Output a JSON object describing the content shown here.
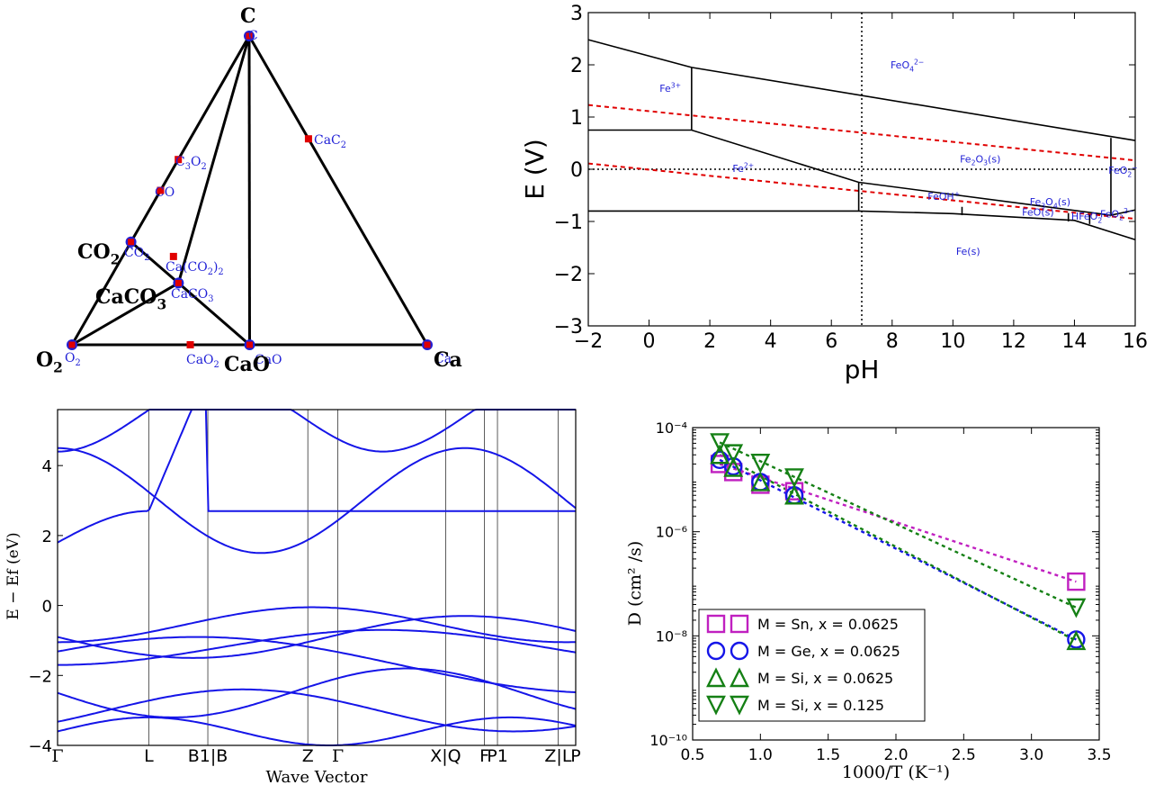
{
  "colors": {
    "stable": "#1f1fd6",
    "unstable": "#e00000",
    "line": "#000000",
    "band": "#1515e8",
    "sn": "#c020c0",
    "ge": "#1515e8",
    "si": "#158015",
    "water": "#e00000"
  },
  "chart_data": [
    {
      "type": "ternary_phase_diagram",
      "vertices": {
        "top": "C",
        "left": "O2",
        "right": "Ca"
      },
      "stable_phases": [
        {
          "name": "C",
          "label": "C",
          "bold_label": "C",
          "t": [
            0,
            0,
            1
          ]
        },
        {
          "name": "O2",
          "label": "O2",
          "bold_label": "O2",
          "t": [
            1,
            0,
            0
          ]
        },
        {
          "name": "Ca",
          "label": "Ca",
          "bold_label": "Ca",
          "t": [
            0,
            1,
            0
          ]
        },
        {
          "name": "CaO",
          "label": "CaO",
          "bold_label": "CaO",
          "t": [
            0.5,
            0.5,
            0
          ]
        },
        {
          "name": "CO2",
          "label": "CO2",
          "bold_label": "CO2",
          "t": [
            0.667,
            0,
            0.333
          ]
        },
        {
          "name": "CaCO3",
          "label": "CaCO3",
          "bold_label": "CaCO3",
          "t": [
            0.6,
            0.2,
            0.2
          ]
        }
      ],
      "unstable_phases": [
        {
          "name": "C3O2",
          "label": "C3O2",
          "t": [
            0.4,
            0,
            0.6
          ]
        },
        {
          "name": "CO",
          "label": "CO",
          "t": [
            0.5,
            0,
            0.5
          ]
        },
        {
          "name": "CaC2",
          "label": "CaC2",
          "t": [
            0,
            0.333,
            0.667
          ]
        },
        {
          "name": "Ca(CO2)2",
          "label": "Ca(CO2)2",
          "t": [
            0.571,
            0.143,
            0.286
          ]
        },
        {
          "name": "CaO2",
          "label": "CaO2",
          "t": [
            0.667,
            0.333,
            0
          ]
        }
      ],
      "tie_lines": [
        [
          "C",
          "O2"
        ],
        [
          "C",
          "Ca"
        ],
        [
          "O2",
          "Ca"
        ],
        [
          "C",
          "CaO"
        ],
        [
          "CO2",
          "CaCO3"
        ],
        [
          "CaCO3",
          "CaO"
        ],
        [
          "CaCO3",
          "O2"
        ],
        [
          "CaCO3",
          "C"
        ]
      ]
    },
    {
      "type": "pourbaix",
      "xlabel": "pH",
      "ylabel": "E (V)",
      "xlim": [
        -2,
        16
      ],
      "ylim": [
        -3,
        3
      ],
      "xticks": [
        -2,
        0,
        2,
        4,
        6,
        8,
        10,
        12,
        14,
        16
      ],
      "yticks": [
        -3,
        -2,
        -1,
        0,
        1,
        2,
        3
      ],
      "reference_lines": {
        "vertical_pH": 7,
        "horizontal_E": 0
      },
      "water_lines": [
        {
          "name": "O2/H2O",
          "points": [
            [
              -2,
              1.23
            ],
            [
              16,
              0.17
            ]
          ]
        },
        {
          "name": "H+/H2",
          "points": [
            [
              -2,
              0.11
            ],
            [
              16,
              -0.95
            ]
          ]
        }
      ],
      "boundaries": [
        [
          [
            -2,
            2.48
          ],
          [
            1.4,
            1.95
          ],
          [
            16,
            0.55
          ]
        ],
        [
          [
            -2,
            0.75
          ],
          [
            1.4,
            0.75
          ],
          [
            6.9,
            -0.25
          ],
          [
            15.2,
            -0.88
          ],
          [
            16,
            -0.78
          ]
        ],
        [
          [
            1.4,
            1.95
          ],
          [
            1.4,
            0.75
          ]
        ],
        [
          [
            15.2,
            0.6
          ],
          [
            15.2,
            -0.88
          ]
        ],
        [
          [
            -2,
            -0.8
          ],
          [
            6.9,
            -0.8
          ],
          [
            10,
            -0.85
          ],
          [
            14,
            -0.98
          ],
          [
            16,
            -1.35
          ]
        ],
        [
          [
            6.9,
            -0.25
          ],
          [
            6.9,
            -0.8
          ]
        ],
        [
          [
            10.3,
            -0.72
          ],
          [
            10.3,
            -0.88
          ]
        ],
        [
          [
            13.8,
            -0.84
          ],
          [
            13.8,
            -1.0
          ]
        ],
        [
          [
            14.5,
            -0.87
          ],
          [
            14.5,
            -1.05
          ]
        ]
      ],
      "regions": [
        {
          "label": "Fe3+",
          "pH": 0.7,
          "E": 1.55
        },
        {
          "label": "FeO4 2-",
          "pH": 8.5,
          "E": 2.0
        },
        {
          "label": "Fe2+",
          "pH": 3.1,
          "E": 0.02
        },
        {
          "label": "Fe2O3(s)",
          "pH": 10.9,
          "E": 0.2
        },
        {
          "label": "FeO2-",
          "pH": 15.6,
          "E": -0.02
        },
        {
          "label": "FeOH+",
          "pH": 9.7,
          "E": -0.52
        },
        {
          "label": "Fe3O4(s)",
          "pH": 13.2,
          "E": -0.62
        },
        {
          "label": "FeO(s)",
          "pH": 12.8,
          "E": -0.82
        },
        {
          "label": "HFeO2-",
          "pH": 14.5,
          "E": -0.9
        },
        {
          "label": "FeO2 2-",
          "pH": 15.4,
          "E": -0.85
        },
        {
          "label": "Fe(s)",
          "pH": 10.5,
          "E": -1.57
        }
      ]
    },
    {
      "type": "line",
      "subtype": "band_structure",
      "xlabel": "Wave Vector",
      "ylabel": "E − Ef (eV)",
      "ylim": [
        -4,
        5.6
      ],
      "yticks": [
        -4,
        -2,
        0,
        2,
        4
      ],
      "kpoints": [
        {
          "label": "Γ",
          "k": 0
        },
        {
          "label": "L",
          "k": 0.176
        },
        {
          "label": "B1|B",
          "k": 0.29
        },
        {
          "label": "Z",
          "k": 0.483
        },
        {
          "label": "Γ",
          "k": 0.541
        },
        {
          "label": "X|Q",
          "k": 0.749
        },
        {
          "label": "F",
          "k": 0.824
        },
        {
          "label": "P1",
          "k": 0.849
        },
        {
          "label": "Z|L",
          "k": 0.966
        },
        {
          "label": "P",
          "k": 1.0
        }
      ],
      "gridlines_k": [
        0.176,
        0.29,
        0.483,
        0.541,
        0.749,
        0.824,
        0.849,
        0.966
      ]
    },
    {
      "type": "scatter",
      "xlabel": "1000/T (K⁻¹)",
      "ylabel": "D (cm² /s)",
      "yscale": "log",
      "xlim": [
        0.5,
        3.5
      ],
      "ylim": [
        1e-10,
        0.0001
      ],
      "xticks": [
        "0.5",
        "1.0",
        "1.5",
        "2.0",
        "2.5",
        "3.0",
        "3.5"
      ],
      "yticks": [
        "10⁻¹⁰",
        "10⁻⁸",
        "10⁻⁶",
        "10⁻⁴"
      ],
      "legend_position": "lower-left",
      "series": [
        {
          "name": "M = Sn, x = 0.0625",
          "marker": "square",
          "x": [
            0.7,
            0.8,
            1.0,
            1.25,
            3.33
          ],
          "y": [
            2e-05,
            1.4e-05,
            8e-06,
            6e-06,
            1.1e-07
          ],
          "fit": [
            [
              0.7,
              2e-05
            ],
            [
              3.33,
              1.1e-07
            ]
          ]
        },
        {
          "name": "M = Ge, x = 0.0625",
          "marker": "circle",
          "x": [
            0.7,
            0.8,
            1.0,
            1.25,
            3.33
          ],
          "y": [
            2.4e-05,
            1.8e-05,
            9e-06,
            5e-06,
            8.5e-09
          ],
          "fit": [
            [
              0.7,
              2.4e-05
            ],
            [
              3.33,
              8.5e-09
            ]
          ]
        },
        {
          "name": "M = Si, x = 0.0625",
          "marker": "triangle-up",
          "x": [
            0.7,
            0.8,
            1.0,
            1.25,
            3.33
          ],
          "y": [
            3e-05,
            1.7e-05,
            9e-06,
            5e-06,
            8e-09
          ],
          "fit": [
            [
              0.7,
              3e-05
            ],
            [
              3.33,
              8e-09
            ]
          ]
        },
        {
          "name": "M = Si, x = 0.125",
          "marker": "triangle-down",
          "x": [
            0.7,
            0.8,
            1.0,
            1.25,
            3.33
          ],
          "y": [
            5.2e-05,
            3.2e-05,
            2.1e-05,
            1.1e-05,
            3.5e-08
          ],
          "fit": [
            [
              0.7,
              5.2e-05
            ],
            [
              3.33,
              3.5e-08
            ]
          ]
        }
      ]
    }
  ]
}
